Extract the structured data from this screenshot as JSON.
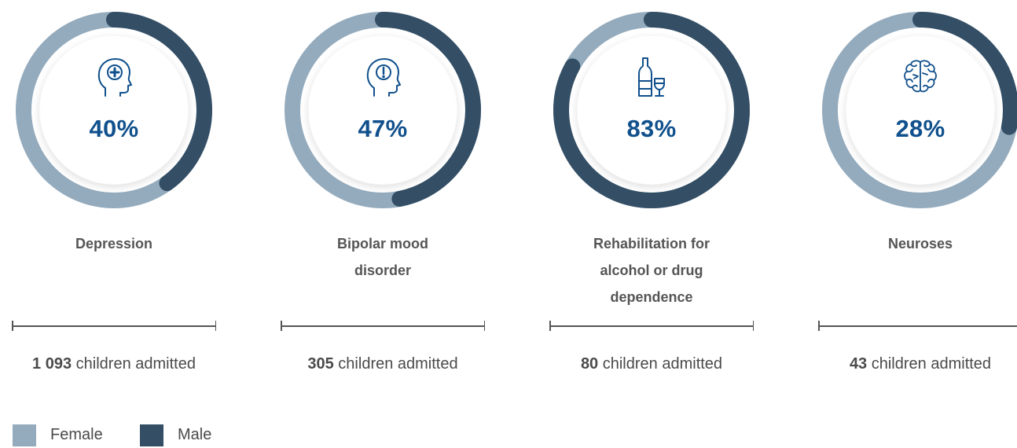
{
  "colors": {
    "female": "#94abbd",
    "male": "#334e65",
    "percent_text": "#10508c"
  },
  "chart_data": {
    "type": "pie",
    "series_names": [
      "Female",
      "Male"
    ],
    "charts": [
      {
        "category": "Depression",
        "percent_label": "40%",
        "female_pct": 60,
        "male_pct": 40,
        "count": "1 093",
        "count_suffix": " children admitted",
        "icon": "head-medical-cross-icon"
      },
      {
        "category": "Bipolar mood disorder",
        "percent_label": "47%",
        "female_pct": 53,
        "male_pct": 47,
        "count": "305",
        "count_suffix": " children admitted",
        "icon": "head-exclamation-icon"
      },
      {
        "category": "Rehabilitation for alcohol or drug dependence",
        "percent_label": "83%",
        "female_pct": 17,
        "male_pct": 83,
        "count": "80",
        "count_suffix": " children admitted",
        "icon": "bottle-and-glass-icon"
      },
      {
        "category": "Neuroses",
        "percent_label": "28%",
        "female_pct": 72,
        "male_pct": 28,
        "count": "43",
        "count_suffix": " children admitted",
        "icon": "brain-icon"
      }
    ]
  },
  "legend": [
    {
      "label": "Female",
      "color": "#94abbd"
    },
    {
      "label": "Male",
      "color": "#334e65"
    }
  ]
}
